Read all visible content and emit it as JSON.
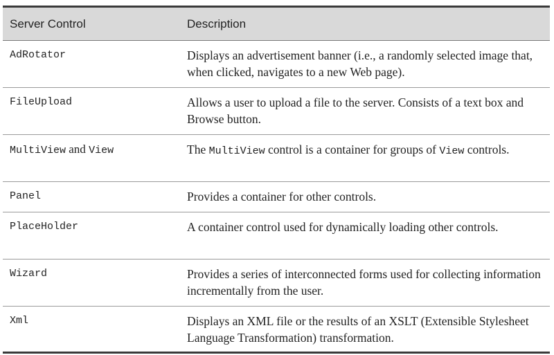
{
  "table": {
    "headers": {
      "control": "Server Control",
      "description": "Description"
    },
    "rows": [
      {
        "control": "AdRotator",
        "description": "Displays an advertisement banner (i.e., a randomly selected image that, when clicked, navigates to a new Web page)."
      },
      {
        "control": "FileUpload",
        "description": "Allows a user to upload a file to the server. Consists of a text box and Browse button."
      },
      {
        "control_part1": "MultiView",
        "control_and": " and ",
        "control_part2": "View",
        "desc_part1": "The ",
        "desc_code1": "MultiView",
        "desc_part2": " control is a container for groups of ",
        "desc_code2": "View",
        "desc_part3": " controls."
      },
      {
        "control": "Panel",
        "description": "Provides a container for other controls."
      },
      {
        "control": "PlaceHolder",
        "description": "A container control used for dynamically loading other controls."
      },
      {
        "control": "Wizard",
        "description": "Provides a series of interconnected forms used for collecting information incrementally from the user."
      },
      {
        "control": "Xml",
        "description": "Displays an XML file or the results of an XSLT (Extensible Stylesheet Language Transformation) transformation."
      }
    ]
  }
}
